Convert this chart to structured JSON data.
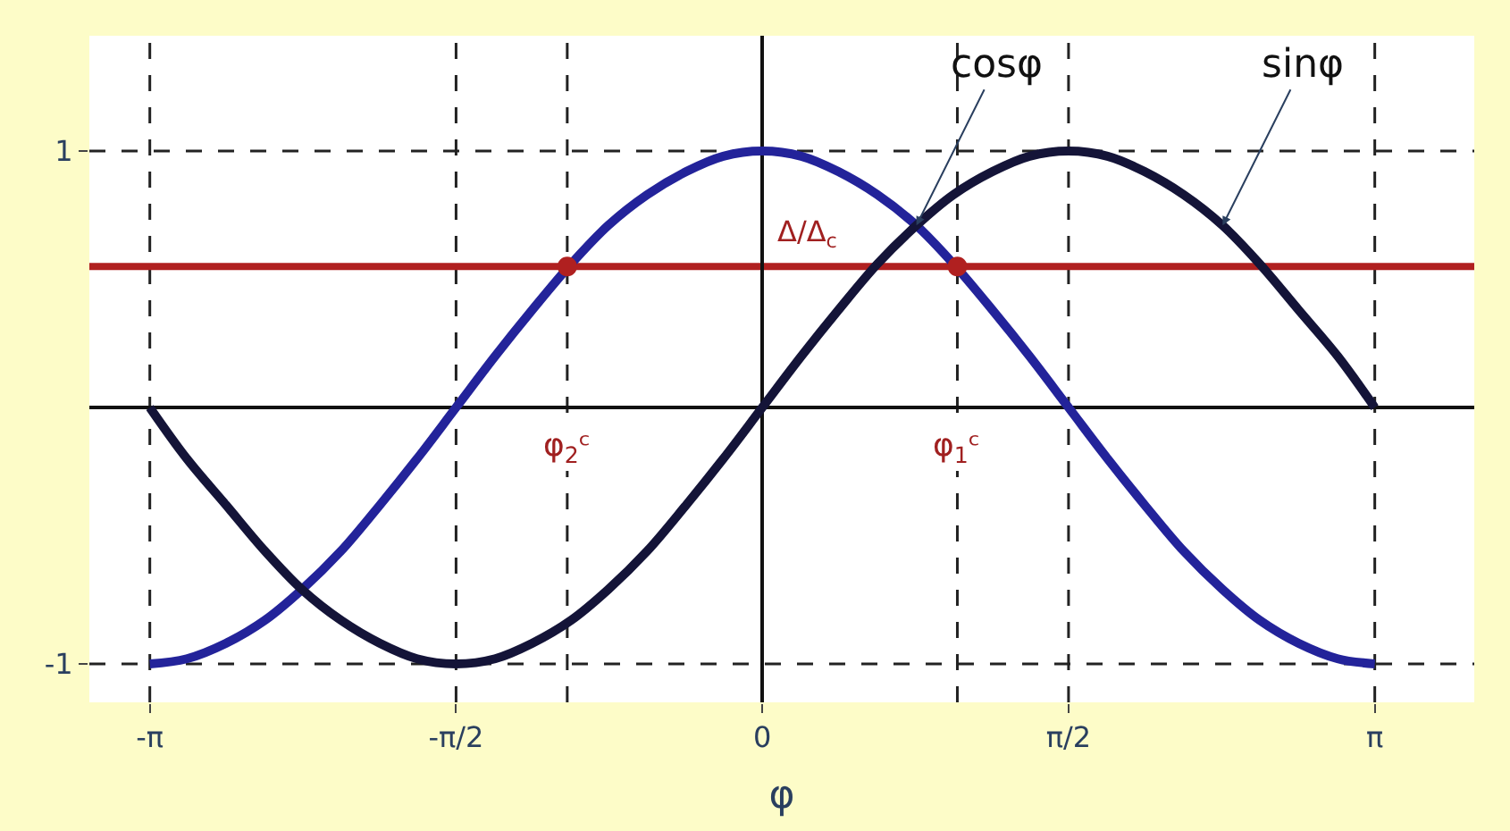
{
  "chart_data": {
    "type": "line",
    "xlabel": "φ",
    "x": [
      -3.14,
      -2.95,
      -2.75,
      -2.55,
      -2.36,
      -2.16,
      -1.96,
      -1.77,
      -1.57,
      -1.37,
      -1.18,
      -0.98,
      -0.79,
      -0.59,
      -0.39,
      -0.2,
      0,
      0.2,
      0.39,
      0.59,
      0.79,
      0.98,
      1.18,
      1.37,
      1.57,
      1.77,
      1.96,
      2.16,
      2.36,
      2.55,
      2.75,
      2.95,
      3.14
    ],
    "series": [
      {
        "name": "cosφ",
        "color": "#23239a",
        "values": [
          -1,
          -0.98,
          -0.92,
          -0.83,
          -0.71,
          -0.56,
          -0.38,
          -0.2,
          0,
          0.2,
          0.38,
          0.56,
          0.71,
          0.83,
          0.92,
          0.98,
          1,
          0.98,
          0.92,
          0.83,
          0.71,
          0.56,
          0.38,
          0.2,
          0,
          -0.2,
          -0.38,
          -0.56,
          -0.71,
          -0.83,
          -0.92,
          -0.98,
          -1
        ]
      },
      {
        "name": "sinφ",
        "color": "#141438",
        "values": [
          0,
          -0.2,
          -0.38,
          -0.56,
          -0.71,
          -0.83,
          -0.92,
          -0.98,
          -1,
          -0.98,
          -0.92,
          -0.83,
          -0.71,
          -0.56,
          -0.38,
          -0.2,
          0,
          0.2,
          0.38,
          0.56,
          0.71,
          0.83,
          0.92,
          0.98,
          1,
          0.98,
          0.92,
          0.83,
          0.71,
          0.56,
          0.38,
          0.2,
          0
        ]
      },
      {
        "type": "scatter",
        "color": "#b02020",
        "x": [
          -1,
          1
        ],
        "values": [
          0.55,
          0.55
        ]
      }
    ],
    "xlim": [
      -3.45,
      3.65
    ],
    "ylim": [
      -1.15,
      1.45
    ],
    "xticks": [
      {
        "value": -3.14,
        "label": "-π"
      },
      {
        "value": -1.57,
        "label": "-π/2"
      },
      0,
      {
        "value": 1.57,
        "label": "π/2"
      },
      {
        "value": 3.14,
        "label": "π"
      }
    ],
    "yticks": [
      -1,
      1
    ],
    "ref_lines": [
      {
        "axis": "x",
        "value": -3.14,
        "line_style": "dashed",
        "color": "#222222"
      },
      {
        "axis": "x",
        "value": -1.57,
        "line_style": "dashed",
        "color": "#222222"
      },
      {
        "axis": "x",
        "value": -1,
        "line_style": "dashed",
        "color": "#222222",
        "label": "φ$_{2}$ᶜ"
      },
      {
        "axis": "x",
        "value": 1,
        "line_style": "dashed",
        "color": "#222222",
        "label": "φ$_{1}$ᶜ"
      },
      {
        "axis": "x",
        "value": 1.57,
        "line_style": "dashed",
        "color": "#222222"
      },
      {
        "axis": "x",
        "value": 3.14,
        "line_style": "dashed",
        "color": "#222222"
      },
      {
        "axis": "y",
        "value": 1,
        "line_style": "dashed",
        "color": "#222222"
      },
      {
        "axis": "y",
        "value": -1,
        "line_style": "dashed",
        "color": "#222222"
      },
      {
        "axis": "y",
        "value": 0.55,
        "line_style": "solid",
        "color": "#b02020",
        "label": "Δ/Δ$_{c}$"
      }
    ],
    "grid": false,
    "legend": false,
    "line_style": "solid"
  }
}
